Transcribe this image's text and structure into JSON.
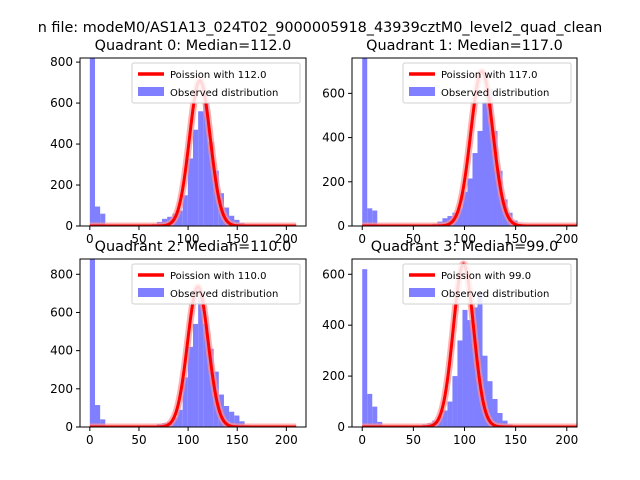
{
  "suptitle": "n file: modeM0/AS1A13_024T02_9000005918_43939cztM0_level2_quad_clean",
  "colors": {
    "observed": "#7f7fff",
    "poisson": "#ff0000",
    "poisson_halo": "#ff9090"
  },
  "chart_data": [
    {
      "type": "bar",
      "title": "Quadrant 0: Median=112.0",
      "xlim": [
        -10,
        220
      ],
      "ylim": [
        0,
        820
      ],
      "xticks": [
        0,
        50,
        100,
        150,
        200
      ],
      "yticks": [
        0,
        200,
        400,
        600,
        800
      ],
      "legend": [
        "Poission with 112.0",
        "Observed distribution"
      ],
      "legend_position": "top-right",
      "bin_width": 5.25,
      "bins": [
        [
          0,
          820
        ],
        [
          5.25,
          95
        ],
        [
          10.5,
          60
        ],
        [
          15.75,
          5
        ],
        [
          21,
          0
        ],
        [
          52.5,
          2
        ],
        [
          57.75,
          5
        ],
        [
          63,
          10
        ],
        [
          68.25,
          20
        ],
        [
          73.5,
          35
        ],
        [
          78.75,
          45
        ],
        [
          84,
          60
        ],
        [
          89.25,
          75
        ],
        [
          94.5,
          150
        ],
        [
          99.75,
          330
        ],
        [
          105,
          470
        ],
        [
          110.25,
          560
        ],
        [
          115.5,
          600
        ],
        [
          120.75,
          410
        ],
        [
          126,
          270
        ],
        [
          131.25,
          160
        ],
        [
          136.5,
          90
        ],
        [
          141.75,
          50
        ],
        [
          147,
          30
        ],
        [
          152.25,
          15
        ],
        [
          157.5,
          8
        ],
        [
          162.75,
          3
        ],
        [
          168,
          2
        ]
      ],
      "poisson_mean": 112.0,
      "poisson_peak": 710
    },
    {
      "type": "bar",
      "title": "Quadrant 1: Median=117.0",
      "xlim": [
        -10,
        210
      ],
      "ylim": [
        0,
        760
      ],
      "xticks": [
        0,
        50,
        100,
        150,
        200
      ],
      "yticks": [
        0,
        200,
        400,
        600
      ],
      "legend": [
        "Poission with 117.0",
        "Observed distribution"
      ],
      "legend_position": "top-right",
      "bin_width": 4.9,
      "bins": [
        [
          0,
          760
        ],
        [
          4.9,
          80
        ],
        [
          9.8,
          70
        ],
        [
          14.7,
          5
        ],
        [
          58.8,
          2
        ],
        [
          63.7,
          5
        ],
        [
          68.6,
          10
        ],
        [
          73.5,
          20
        ],
        [
          78.4,
          35
        ],
        [
          83.3,
          45
        ],
        [
          88.2,
          60
        ],
        [
          93.1,
          80
        ],
        [
          98,
          155
        ],
        [
          102.9,
          215
        ],
        [
          107.8,
          330
        ],
        [
          112.7,
          430
        ],
        [
          117.6,
          560
        ],
        [
          122.5,
          620
        ],
        [
          127.4,
          430
        ],
        [
          132.3,
          250
        ],
        [
          137.2,
          120
        ],
        [
          142.1,
          60
        ],
        [
          147,
          25
        ],
        [
          151.9,
          10
        ],
        [
          156.8,
          5
        ],
        [
          161.7,
          3
        ]
      ],
      "poisson_mean": 117.0,
      "poisson_peak": 700
    },
    {
      "type": "bar",
      "title": "Quadrant 2: Median=110.0",
      "xlim": [
        -10,
        220
      ],
      "ylim": [
        0,
        880
      ],
      "xticks": [
        0,
        50,
        100,
        150,
        200
      ],
      "yticks": [
        0,
        200,
        400,
        600,
        800
      ],
      "legend": [
        "Poission with 110.0",
        "Observed distribution"
      ],
      "legend_position": "top-right",
      "bin_width": 5.25,
      "bins": [
        [
          0,
          880
        ],
        [
          5.25,
          115
        ],
        [
          10.5,
          40
        ],
        [
          15.75,
          5
        ],
        [
          47.25,
          2
        ],
        [
          52.5,
          3
        ],
        [
          57.75,
          5
        ],
        [
          63,
          8
        ],
        [
          68.25,
          15
        ],
        [
          73.5,
          20
        ],
        [
          78.75,
          25
        ],
        [
          84,
          50
        ],
        [
          89.25,
          90
        ],
        [
          94.5,
          260
        ],
        [
          99.75,
          420
        ],
        [
          105,
          540
        ],
        [
          110.25,
          680
        ],
        [
          115.5,
          540
        ],
        [
          120.75,
          410
        ],
        [
          126,
          290
        ],
        [
          131.25,
          170
        ],
        [
          136.5,
          110
        ],
        [
          141.75,
          80
        ],
        [
          147,
          60
        ],
        [
          152.25,
          30
        ],
        [
          157.5,
          10
        ],
        [
          162.75,
          5
        ],
        [
          168,
          3
        ]
      ],
      "poisson_mean": 110.0,
      "poisson_peak": 735
    },
    {
      "type": "bar",
      "title": "Quadrant 3: Median=99.0",
      "xlim": [
        -10,
        210
      ],
      "ylim": [
        0,
        660
      ],
      "xticks": [
        0,
        50,
        100,
        150,
        200
      ],
      "yticks": [
        0,
        200,
        400,
        600
      ],
      "legend": [
        "Poission with 99.0",
        "Observed distribution"
      ],
      "legend_position": "top-right",
      "bin_width": 4.9,
      "bins": [
        [
          0,
          620
        ],
        [
          4.9,
          130
        ],
        [
          9.8,
          80
        ],
        [
          14.7,
          20
        ],
        [
          19.6,
          5
        ],
        [
          44.1,
          2
        ],
        [
          49,
          3
        ],
        [
          53.9,
          5
        ],
        [
          58.8,
          10
        ],
        [
          63.7,
          15
        ],
        [
          68.6,
          25
        ],
        [
          73.5,
          40
        ],
        [
          78.4,
          65
        ],
        [
          83.3,
          100
        ],
        [
          88.2,
          200
        ],
        [
          93.1,
          340
        ],
        [
          98,
          460
        ],
        [
          102.9,
          420
        ],
        [
          107.8,
          470
        ],
        [
          112.7,
          530
        ],
        [
          117.6,
          280
        ],
        [
          122.5,
          180
        ],
        [
          127.4,
          110
        ],
        [
          132.3,
          55
        ],
        [
          137.2,
          25
        ],
        [
          142.1,
          10
        ],
        [
          147,
          5
        ],
        [
          151.9,
          3
        ]
      ],
      "poisson_mean": 99.0,
      "poisson_peak": 640
    }
  ]
}
